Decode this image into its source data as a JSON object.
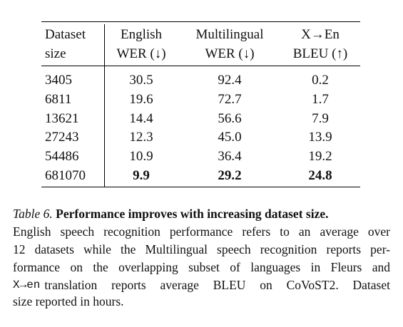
{
  "table": {
    "header": [
      [
        "Dataset",
        "size"
      ],
      [
        "English",
        "WER (↓)"
      ],
      [
        "Multilingual",
        "WER (↓)"
      ],
      [
        "X→En",
        "BLEU (↑)"
      ]
    ],
    "rows": [
      [
        "3405",
        "30.5",
        "92.4",
        "0.2"
      ],
      [
        "6811",
        "19.6",
        "72.7",
        "1.7"
      ],
      [
        "13621",
        "14.4",
        "56.6",
        "7.9"
      ],
      [
        "27243",
        "12.3",
        "45.0",
        "13.9"
      ],
      [
        "54486",
        "10.9",
        "36.4",
        "19.2"
      ],
      [
        "681070",
        "9.9",
        "29.2",
        "24.8"
      ]
    ]
  },
  "caption": {
    "label": "Table 6.",
    "title": "Performance improves with increasing dataset size.",
    "lines": [
      "English speech recognition performance refers to an average over",
      "12 datasets while the Multilingual speech recognition reports per-",
      "formance on the overlapping subset of languages in Fleurs and"
    ],
    "code": "X→en",
    "after_code": "translation reports average BLEU on CoVoST2. Dataset",
    "last_line": "size reported in hours."
  }
}
